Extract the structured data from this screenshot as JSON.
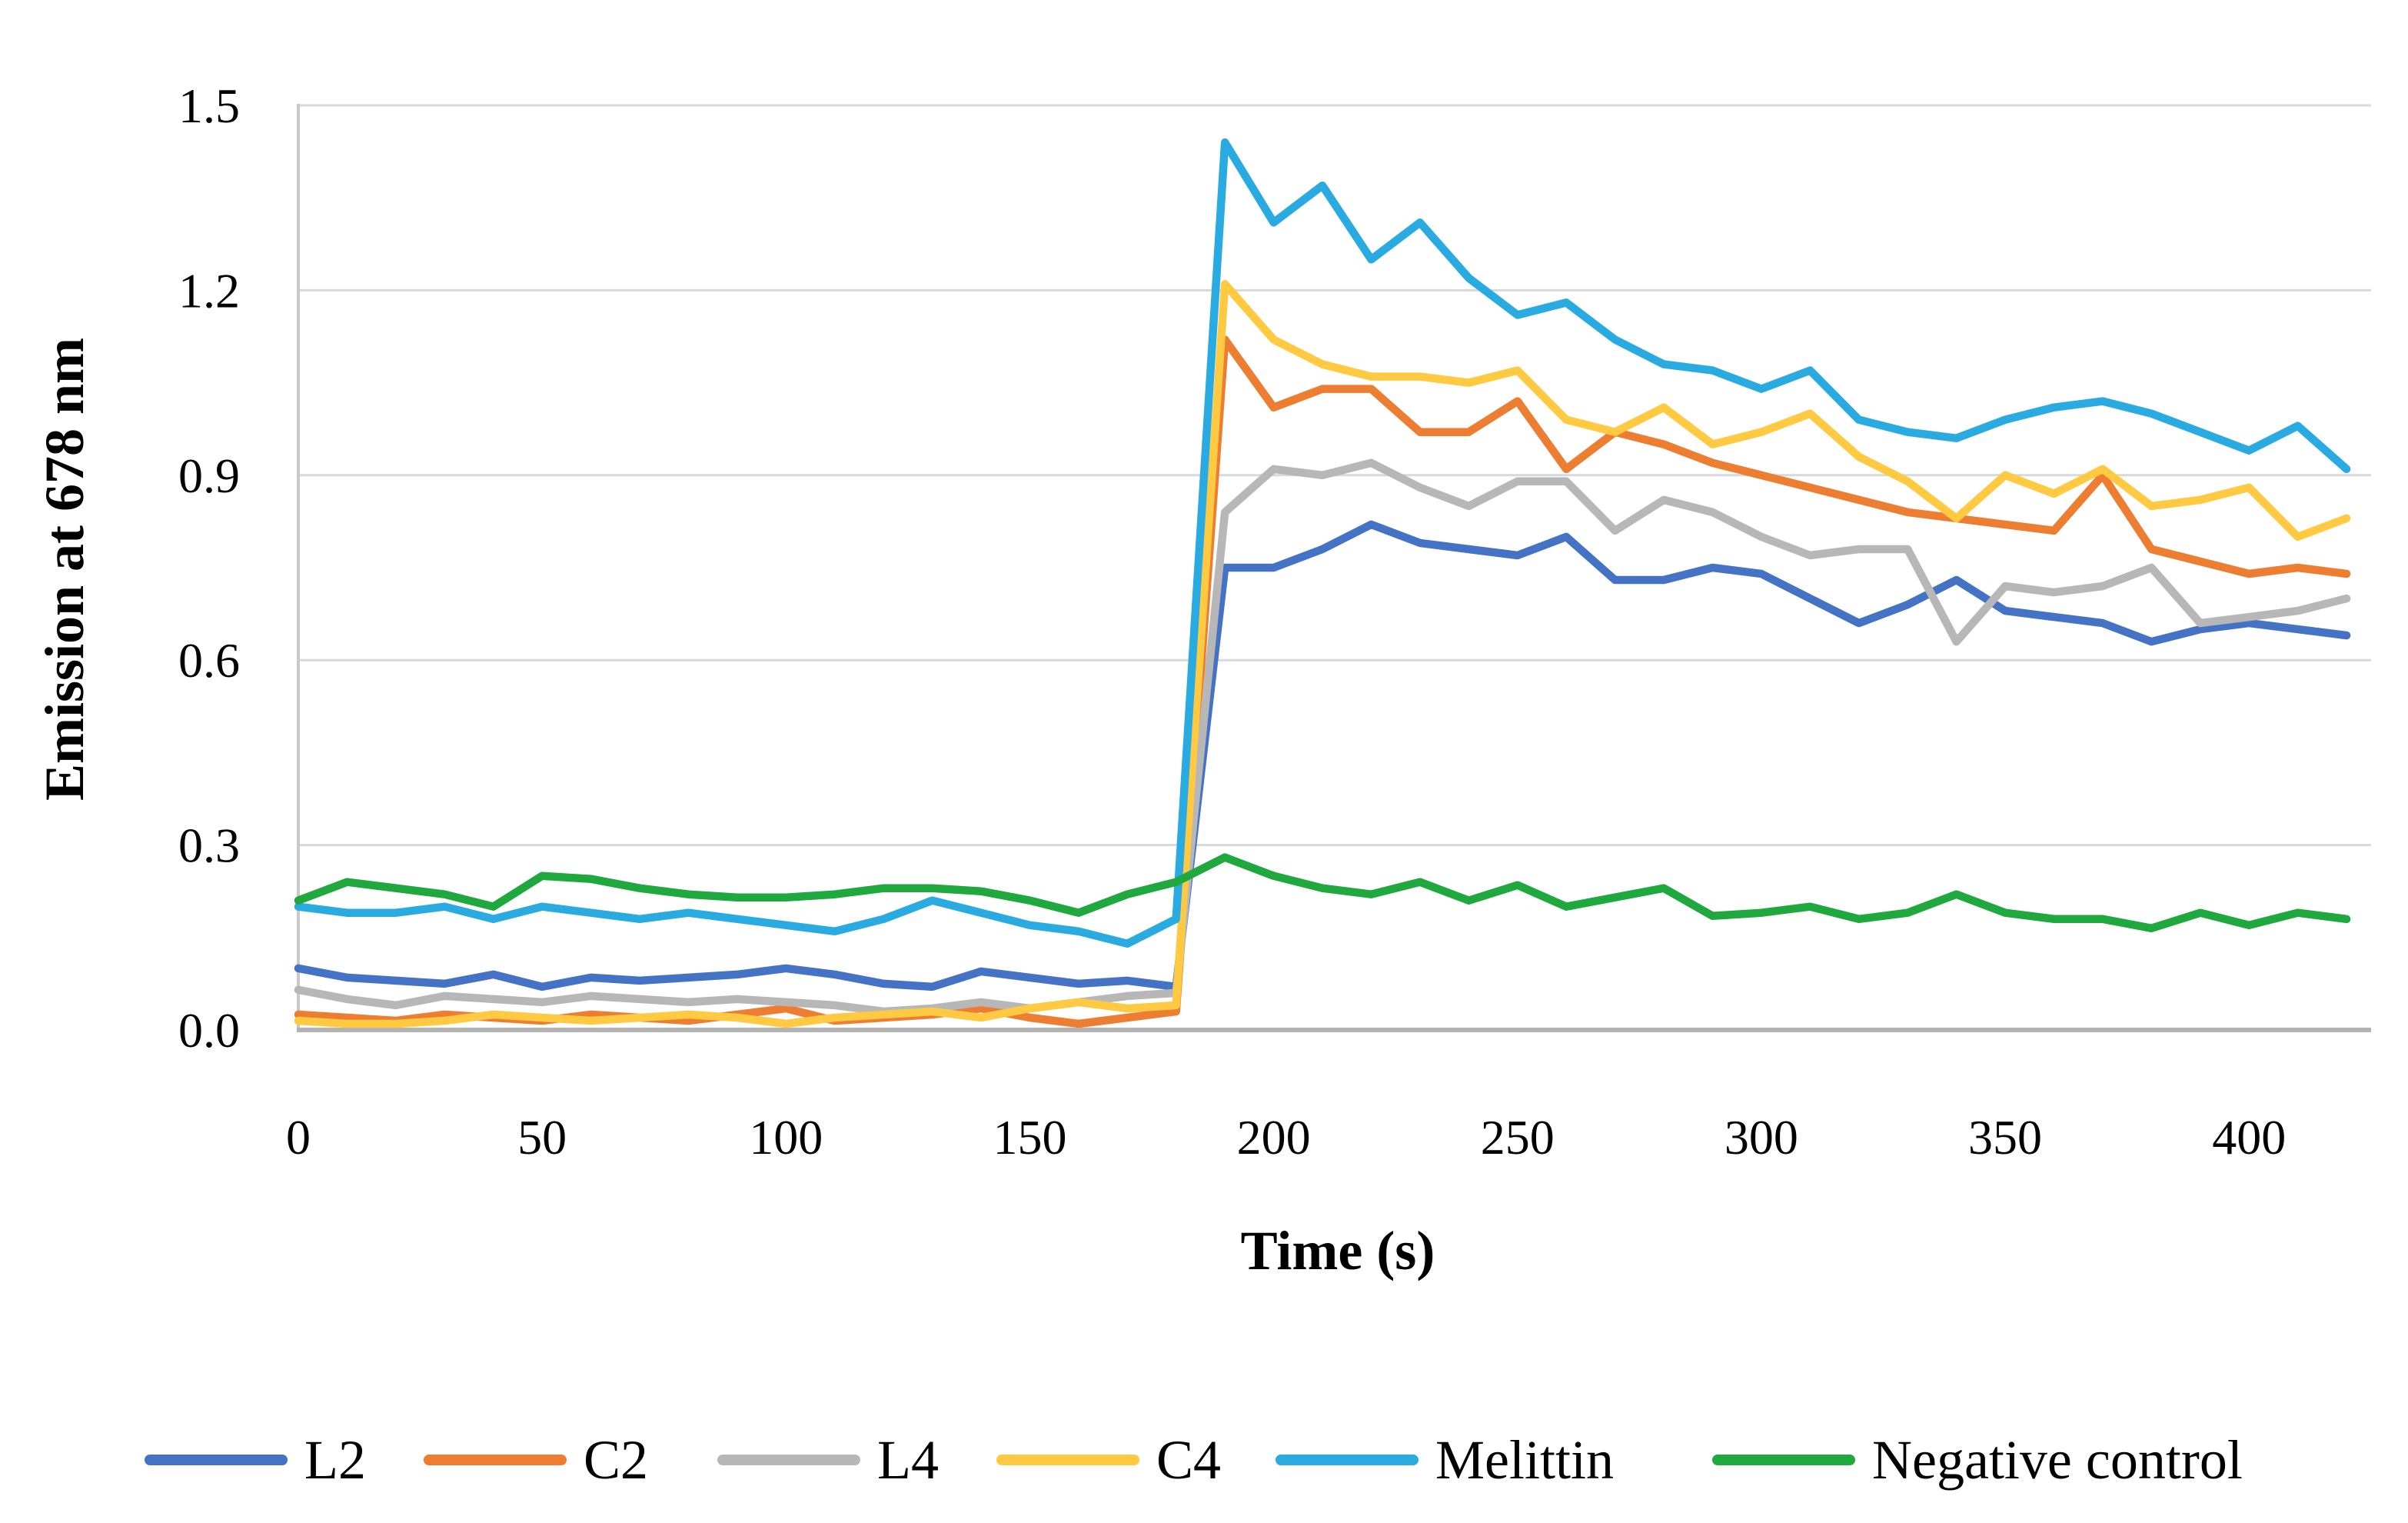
{
  "page": {
    "background": "#FFFFFF"
  },
  "chart_data": {
    "type": "line",
    "title": "",
    "xlabel": "Time (s)",
    "ylabel": "Emission at 678 nm",
    "xlim": [
      0,
      420
    ],
    "ylim": [
      0,
      1.5
    ],
    "grid": "horizontal-only",
    "legend_position": "bottom",
    "xaxis": {
      "ticks": [
        0,
        50,
        100,
        150,
        200,
        250,
        300,
        350,
        400
      ],
      "tick_labels": [
        "0",
        "50",
        "100",
        "150",
        "200",
        "250",
        "300",
        "350",
        "400"
      ]
    },
    "yaxis": {
      "ticks": [
        0,
        0.3,
        0.6,
        0.9,
        1.2,
        1.5
      ],
      "tick_labels": [
        "0.0",
        "0.3",
        "0.6",
        "0.9",
        "1.2",
        "1.5"
      ]
    },
    "x": [
      0,
      10,
      20,
      30,
      40,
      50,
      60,
      70,
      80,
      90,
      100,
      110,
      120,
      130,
      140,
      150,
      160,
      170,
      180,
      190,
      200,
      210,
      220,
      230,
      240,
      250,
      260,
      270,
      280,
      290,
      300,
      310,
      320,
      330,
      340,
      350,
      360,
      370,
      380,
      390,
      400,
      410,
      420
    ],
    "series": [
      {
        "name": "L2",
        "color": "#4472C4",
        "values": [
          0.1,
          0.085,
          0.08,
          0.075,
          0.09,
          0.07,
          0.085,
          0.08,
          0.085,
          0.09,
          0.1,
          0.09,
          0.075,
          0.07,
          0.095,
          0.085,
          0.075,
          0.08,
          0.07,
          0.75,
          0.75,
          0.78,
          0.82,
          0.79,
          0.78,
          0.77,
          0.8,
          0.73,
          0.73,
          0.75,
          0.74,
          0.7,
          0.66,
          0.69,
          0.73,
          0.68,
          0.67,
          0.66,
          0.63,
          0.65,
          0.66,
          0.65,
          0.64
        ]
      },
      {
        "name": "C2",
        "color": "#ED7D31",
        "values": [
          0.025,
          0.02,
          0.015,
          0.025,
          0.02,
          0.015,
          0.025,
          0.02,
          0.015,
          0.025,
          0.035,
          0.015,
          0.02,
          0.025,
          0.035,
          0.02,
          0.01,
          0.02,
          0.03,
          1.12,
          1.01,
          1.04,
          1.04,
          0.97,
          0.97,
          1.02,
          0.91,
          0.97,
          0.95,
          0.92,
          0.9,
          0.88,
          0.86,
          0.84,
          0.83,
          0.82,
          0.81,
          0.9,
          0.78,
          0.76,
          0.74,
          0.75,
          0.74
        ]
      },
      {
        "name": "L4",
        "color": "#B7B7B7",
        "values": [
          0.065,
          0.05,
          0.04,
          0.055,
          0.05,
          0.045,
          0.055,
          0.05,
          0.045,
          0.05,
          0.045,
          0.04,
          0.03,
          0.035,
          0.045,
          0.035,
          0.045,
          0.055,
          0.06,
          0.84,
          0.91,
          0.9,
          0.92,
          0.88,
          0.85,
          0.89,
          0.89,
          0.81,
          0.86,
          0.84,
          0.8,
          0.77,
          0.78,
          0.78,
          0.63,
          0.72,
          0.71,
          0.72,
          0.75,
          0.66,
          0.67,
          0.68,
          0.7
        ]
      },
      {
        "name": "C4",
        "color": "#FFC942",
        "values": [
          0.015,
          0.01,
          0.01,
          0.015,
          0.025,
          0.02,
          0.015,
          0.02,
          0.025,
          0.02,
          0.01,
          0.02,
          0.025,
          0.03,
          0.02,
          0.035,
          0.045,
          0.035,
          0.04,
          1.21,
          1.12,
          1.08,
          1.06,
          1.06,
          1.05,
          1.07,
          0.99,
          0.97,
          1.01,
          0.95,
          0.97,
          1.0,
          0.93,
          0.89,
          0.83,
          0.9,
          0.87,
          0.91,
          0.85,
          0.86,
          0.88,
          0.8,
          0.83
        ]
      },
      {
        "name": "Melittin",
        "color": "#29ABE2",
        "values": [
          0.2,
          0.19,
          0.19,
          0.2,
          0.18,
          0.2,
          0.19,
          0.18,
          0.19,
          0.18,
          0.17,
          0.16,
          0.18,
          0.21,
          0.19,
          0.17,
          0.16,
          0.14,
          0.18,
          1.44,
          1.31,
          1.37,
          1.25,
          1.31,
          1.22,
          1.16,
          1.18,
          1.12,
          1.08,
          1.07,
          1.04,
          1.07,
          0.99,
          0.97,
          0.96,
          0.99,
          1.01,
          1.02,
          1.0,
          0.97,
          0.94,
          0.98,
          0.91
        ]
      },
      {
        "name": "Negative control",
        "color": "#1FA83D",
        "values": [
          0.21,
          0.24,
          0.23,
          0.22,
          0.2,
          0.25,
          0.245,
          0.23,
          0.22,
          0.215,
          0.215,
          0.22,
          0.23,
          0.23,
          0.225,
          0.21,
          0.19,
          0.22,
          0.24,
          0.28,
          0.25,
          0.23,
          0.22,
          0.24,
          0.21,
          0.235,
          0.2,
          0.215,
          0.23,
          0.185,
          0.19,
          0.2,
          0.18,
          0.19,
          0.22,
          0.19,
          0.18,
          0.18,
          0.165,
          0.19,
          0.17,
          0.19,
          0.18
        ]
      }
    ],
    "colors": {
      "gridline": "#D9D9D9",
      "axis_line_bottom": "#B3B3B3",
      "axis_line_left": "#C9C9C9",
      "text": "#000000"
    }
  }
}
